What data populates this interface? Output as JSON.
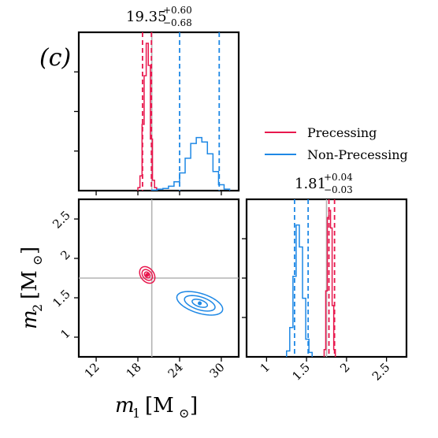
{
  "chart_data": [
    {
      "panel": "m1-histogram",
      "type": "histogram",
      "panel_label": "(c)",
      "title_value": "19.35",
      "title_plus": "+0.60",
      "title_minus": "−0.68",
      "xlim": [
        9.5,
        32.5
      ],
      "xticks": [
        12,
        18,
        24,
        30
      ],
      "truth": 20.0,
      "series": [
        {
          "name": "Precessing",
          "color": "#e8174d",
          "bin_edges": [
            18.0,
            18.3,
            18.6,
            18.9,
            19.2,
            19.5,
            19.8,
            20.1,
            20.4,
            20.7
          ],
          "counts": [
            0.02,
            0.1,
            0.45,
            0.78,
            1.0,
            0.85,
            0.35,
            0.07,
            0.02
          ],
          "quantiles": [
            18.67,
            19.35,
            19.95
          ]
        },
        {
          "name": "Non-Precessing",
          "color": "#1e88e5",
          "bin_edges": [
            20.0,
            20.8,
            21.6,
            22.4,
            23.2,
            24.0,
            24.8,
            25.6,
            26.4,
            27.2,
            28.0,
            28.8,
            29.6,
            30.4,
            31.2
          ],
          "counts": [
            0.004,
            0.01,
            0.015,
            0.03,
            0.06,
            0.12,
            0.22,
            0.32,
            0.36,
            0.33,
            0.25,
            0.13,
            0.04,
            0.01
          ],
          "quantiles": [
            24.0,
            26.9,
            29.7
          ]
        }
      ]
    },
    {
      "panel": "m1-m2-joint",
      "type": "contour",
      "xlabel_base": "m",
      "xlabel_sub": "1",
      "xlabel_unit": "[M",
      "ylabel_base": "m",
      "ylabel_sub": "2",
      "ylabel_unit": "[M",
      "xlim": [
        9.5,
        32.5
      ],
      "ylim": [
        0.75,
        2.75
      ],
      "xticks": [
        12,
        18,
        24,
        30
      ],
      "yticks": [
        1.0,
        1.5,
        2.0,
        2.5
      ],
      "truth": [
        20.0,
        1.75
      ],
      "series": [
        {
          "name": "Precessing",
          "color": "#e8174d",
          "center": [
            19.35,
            1.79
          ],
          "semi_axes": [
            [
              1.1,
              0.1
            ],
            [
              0.75,
              0.065
            ],
            [
              0.4,
              0.035
            ]
          ],
          "slope": -0.06
        },
        {
          "name": "Non-Precessing",
          "color": "#1e88e5",
          "center": [
            26.9,
            1.43
          ],
          "semi_axes": [
            [
              3.3,
              0.13
            ],
            [
              2.2,
              0.085
            ],
            [
              1.1,
              0.045
            ]
          ],
          "slope": -0.045
        }
      ]
    },
    {
      "panel": "m2-histogram",
      "type": "histogram",
      "title_value": "1.81",
      "title_plus": "+0.04",
      "title_minus": "−0.03",
      "xlim": [
        0.75,
        2.75
      ],
      "xticks": [
        1.0,
        1.5,
        2.0,
        2.5
      ],
      "truth": 1.75,
      "series": [
        {
          "name": "Precessing",
          "color": "#e8174d",
          "bin_edges": [
            1.72,
            1.74,
            1.76,
            1.78,
            1.8,
            1.82,
            1.84,
            1.86
          ],
          "counts": [
            0.05,
            0.45,
            0.95,
            1.0,
            0.88,
            0.35,
            0.05
          ],
          "quantiles": [
            1.78,
            1.81,
            1.85
          ]
        },
        {
          "name": "Non-Precessing",
          "color": "#1e88e5",
          "bin_edges": [
            1.25,
            1.29,
            1.33,
            1.37,
            1.41,
            1.45,
            1.49,
            1.53,
            1.57
          ],
          "counts": [
            0.04,
            0.2,
            0.55,
            0.9,
            0.75,
            0.4,
            0.12,
            0.03
          ],
          "quantiles": [
            1.35,
            1.42,
            1.52
          ]
        }
      ]
    }
  ],
  "legend": {
    "items": [
      {
        "label": "Precessing",
        "color": "#e8174d"
      },
      {
        "label": "Non-Precessing",
        "color": "#1e88e5"
      }
    ]
  }
}
